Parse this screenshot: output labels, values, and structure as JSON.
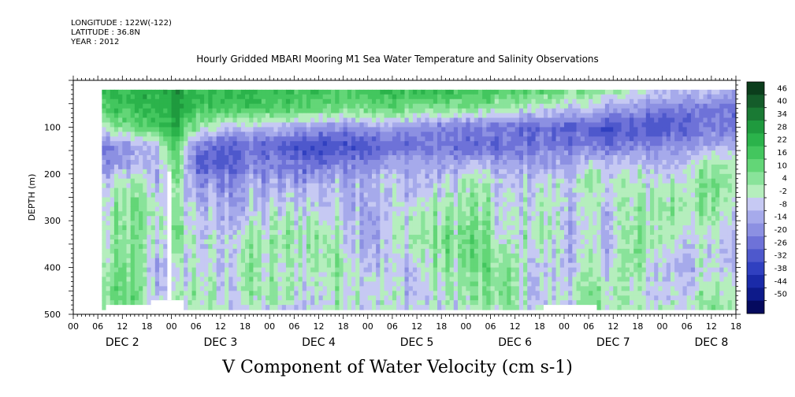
{
  "header": {
    "longitude": "LONGITUDE : 122W(-122)",
    "latitude": "LATITUDE : 36.8N",
    "year": "YEAR : 2012"
  },
  "chart_data": {
    "type": "heatmap",
    "title": "Hourly Gridded MBARI Mooring M1 Sea Water Temperature and Salinity Observations",
    "bottom_title": "V Component of Water Velocity (cm s-1)",
    "ylabel": "DEPTH (m)",
    "xlabel": "",
    "ylim": [
      500,
      0
    ],
    "y_ticks": [
      100,
      200,
      300,
      400,
      500
    ],
    "x_range_hours": [
      0,
      162
    ],
    "x_hour_ticks": [
      "00",
      "06",
      "12",
      "18",
      "00",
      "06",
      "12",
      "18",
      "00",
      "06",
      "12",
      "18",
      "00",
      "06",
      "12",
      "18",
      "00",
      "06",
      "12",
      "18",
      "00",
      "06",
      "12",
      "18",
      "00",
      "06",
      "12",
      "18"
    ],
    "x_day_labels": [
      "DEC  2",
      "DEC  3",
      "DEC  4",
      "DEC  5",
      "DEC  6",
      "DEC  7",
      "DEC  8"
    ],
    "colorbar": {
      "labels": [
        "46",
        "40",
        "34",
        "28",
        "22",
        "16",
        "10",
        "4",
        "-2",
        "-8",
        "-14",
        "-20",
        "-26",
        "-32",
        "-38",
        "-44",
        "-50"
      ],
      "colors": [
        "#0b3d1c",
        "#145c2a",
        "#1a7a34",
        "#1f9a3e",
        "#2bb34b",
        "#43c65e",
        "#63d677",
        "#89e39a",
        "#b5eebd",
        "#c6c9f3",
        "#a6aaeb",
        "#8c90e2",
        "#6e72d8",
        "#4e58cc",
        "#3040c0",
        "#1a2aa8",
        "#0d1a8a",
        "#050a5e"
      ]
    },
    "data_start_hour": 7,
    "depth_top": 20,
    "depth_bottom": 490,
    "profile_depths": [
      20,
      60,
      100,
      140,
      180,
      220,
      280,
      340,
      400,
      460,
      490
    ],
    "profiles": [
      {
        "hour": 7,
        "values": [
          20,
          14,
          2,
          -22,
          -18,
          -8,
          -4,
          -2,
          2,
          4,
          6
        ]
      },
      {
        "hour": 14,
        "values": [
          22,
          20,
          10,
          -14,
          -12,
          4,
          8,
          6,
          10,
          12,
          8
        ]
      },
      {
        "hour": 20,
        "values": [
          26,
          24,
          18,
          -6,
          -10,
          -8,
          2,
          -2,
          -10,
          -6,
          -4
        ]
      },
      {
        "hour": 25,
        "values": [
          32,
          30,
          26,
          16,
          14,
          4,
          2,
          6,
          -8,
          -4,
          -2
        ]
      },
      {
        "hour": 30,
        "values": [
          24,
          20,
          6,
          -18,
          -26,
          -14,
          -6,
          -2,
          2,
          6,
          2
        ]
      },
      {
        "hour": 36,
        "values": [
          22,
          18,
          -4,
          -28,
          -30,
          -18,
          -12,
          -6,
          -10,
          -4,
          -2
        ]
      },
      {
        "hour": 42,
        "values": [
          24,
          20,
          -6,
          -24,
          -20,
          -12,
          -8,
          4,
          6,
          2,
          -4
        ]
      },
      {
        "hour": 50,
        "values": [
          20,
          16,
          -10,
          -26,
          -20,
          -14,
          -4,
          2,
          -2,
          4,
          -6
        ]
      },
      {
        "hour": 58,
        "values": [
          22,
          14,
          -14,
          -34,
          -24,
          -10,
          -2,
          6,
          2,
          -4,
          -8
        ]
      },
      {
        "hour": 66,
        "values": [
          18,
          10,
          -16,
          -30,
          -18,
          -8,
          -4,
          0,
          6,
          2,
          4
        ]
      },
      {
        "hour": 74,
        "values": [
          24,
          12,
          -12,
          -28,
          -14,
          -6,
          -10,
          -12,
          -6,
          2,
          -4
        ]
      },
      {
        "hour": 82,
        "values": [
          22,
          10,
          -14,
          -24,
          -10,
          -8,
          -2,
          4,
          -8,
          -6,
          -2
        ]
      },
      {
        "hour": 90,
        "values": [
          24,
          8,
          -18,
          -22,
          -12,
          -6,
          2,
          8,
          2,
          -2,
          -4
        ]
      },
      {
        "hour": 98,
        "values": [
          20,
          6,
          -20,
          -26,
          -8,
          4,
          6,
          12,
          10,
          4,
          2
        ]
      },
      {
        "hour": 106,
        "values": [
          16,
          2,
          -22,
          -24,
          -12,
          -8,
          -6,
          -4,
          6,
          8,
          4
        ]
      },
      {
        "hour": 114,
        "values": [
          14,
          -2,
          -24,
          -20,
          -14,
          -4,
          2,
          4,
          -6,
          -8,
          -2
        ]
      },
      {
        "hour": 122,
        "values": [
          10,
          -6,
          -26,
          -20,
          -10,
          -2,
          -6,
          -8,
          -4,
          2,
          0
        ]
      },
      {
        "hour": 130,
        "values": [
          6,
          -10,
          -30,
          -22,
          -4,
          2,
          -4,
          -6,
          -2,
          6,
          4
        ]
      },
      {
        "hour": 138,
        "values": [
          0,
          -16,
          -30,
          -18,
          -6,
          -2,
          2,
          6,
          4,
          -4,
          -2
        ]
      },
      {
        "hour": 146,
        "values": [
          -4,
          -20,
          -28,
          -16,
          -8,
          2,
          6,
          2,
          -8,
          -4,
          2
        ]
      },
      {
        "hour": 154,
        "values": [
          -8,
          -22,
          -24,
          -12,
          2,
          6,
          4,
          -4,
          -6,
          2,
          4
        ]
      },
      {
        "hour": 162,
        "values": [
          -10,
          -24,
          -20,
          -8,
          4,
          8,
          -2,
          -6,
          -4,
          4,
          6
        ]
      }
    ],
    "missing_regions": [
      {
        "hour_start": 23,
        "hour_end": 24,
        "depth_start": 195,
        "depth_end": 470
      },
      {
        "hour_start": 23,
        "hour_end": 25,
        "depth_start": 0,
        "depth_end": 20
      },
      {
        "hour_start": 8,
        "hour_end": 19,
        "depth_start": 480,
        "depth_end": 500
      },
      {
        "hour_start": 19,
        "hour_end": 27,
        "depth_start": 470,
        "depth_end": 500
      },
      {
        "hour_start": 115,
        "hour_end": 128,
        "depth_start": 480,
        "depth_end": 500
      }
    ]
  }
}
